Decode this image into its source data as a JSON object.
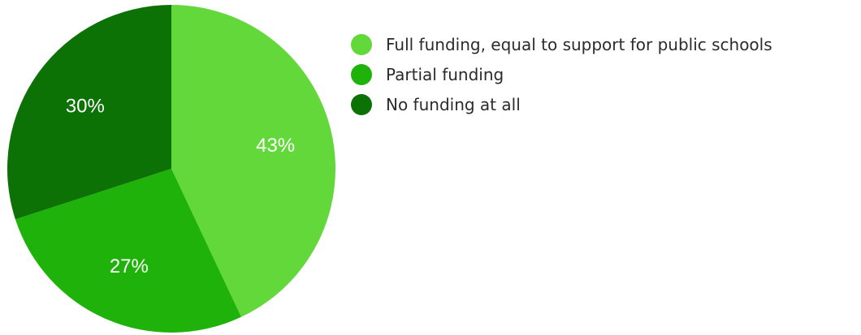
{
  "chart_data": {
    "type": "pie",
    "categories": [
      "Full funding, equal to support for public schools",
      "Partial funding",
      "No funding at all"
    ],
    "values": [
      43,
      27,
      30
    ],
    "labels": [
      "43%",
      "27%",
      "30%"
    ],
    "colors": [
      "#62d83a",
      "#1fb20a",
      "#0c7206"
    ],
    "legend_position": "right",
    "start_angle": "12 o'clock, clockwise"
  }
}
